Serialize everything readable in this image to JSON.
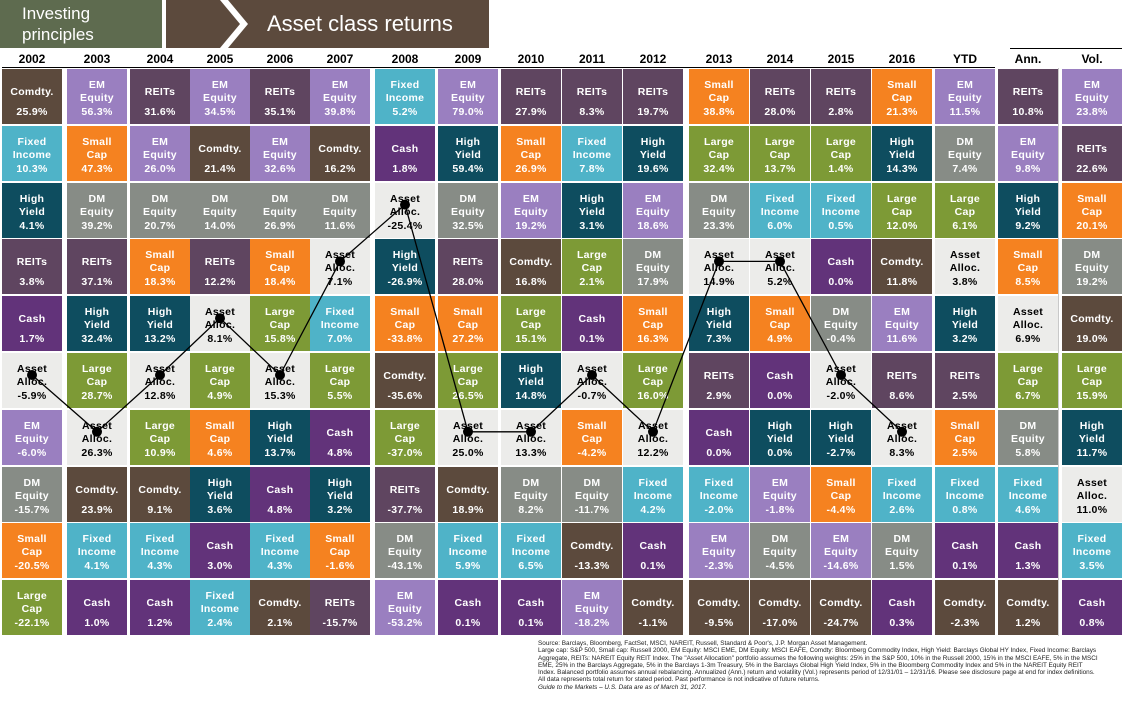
{
  "header": {
    "left_line1": "Investing",
    "left_line2": "principles",
    "title": "Asset class returns"
  },
  "colors": {
    "Comdty.": "#5c4a3d",
    "EM Equity": "#9a7fc0",
    "REITs": "#5f4560",
    "Fixed Income": "#4fb3c8",
    "Cash": "#62337a",
    "Small Cap": "#f58220",
    "High Yield": "#0e4d5f",
    "DM Equity": "#878c86",
    "Large Cap": "#7d9a36",
    "Asset Alloc.": "#ececea"
  },
  "chart_data": {
    "type": "table",
    "title": "Asset class returns",
    "columns": [
      "2002",
      "2003",
      "2004",
      "2005",
      "2006",
      "2007",
      "2008",
      "2009",
      "2010",
      "2011",
      "2012",
      "2013",
      "2014",
      "2015",
      "2016",
      "YTD",
      "Ann.",
      "Vol."
    ],
    "rows": [
      [
        [
          "Comdty.",
          "25.9%"
        ],
        [
          "EM Equity",
          "56.3%"
        ],
        [
          "REITs",
          "31.6%"
        ],
        [
          "EM Equity",
          "34.5%"
        ],
        [
          "REITs",
          "35.1%"
        ],
        [
          "EM Equity",
          "39.8%"
        ],
        [
          "Fixed Income",
          "5.2%"
        ],
        [
          "EM Equity",
          "79.0%"
        ],
        [
          "REITs",
          "27.9%"
        ],
        [
          "REITs",
          "8.3%"
        ],
        [
          "REITs",
          "19.7%"
        ],
        [
          "Small Cap",
          "38.8%"
        ],
        [
          "REITs",
          "28.0%"
        ],
        [
          "REITs",
          "2.8%"
        ],
        [
          "Small Cap",
          "21.3%"
        ],
        [
          "EM Equity",
          "11.5%"
        ],
        [
          "REITs",
          "10.8%"
        ],
        [
          "EM Equity",
          "23.8%"
        ]
      ],
      [
        [
          "Fixed Income",
          "10.3%"
        ],
        [
          "Small Cap",
          "47.3%"
        ],
        [
          "EM Equity",
          "26.0%"
        ],
        [
          "Comdty.",
          "21.4%"
        ],
        [
          "EM Equity",
          "32.6%"
        ],
        [
          "Comdty.",
          "16.2%"
        ],
        [
          "Cash",
          "1.8%"
        ],
        [
          "High Yield",
          "59.4%"
        ],
        [
          "Small Cap",
          "26.9%"
        ],
        [
          "Fixed Income",
          "7.8%"
        ],
        [
          "High Yield",
          "19.6%"
        ],
        [
          "Large Cap",
          "32.4%"
        ],
        [
          "Large Cap",
          "13.7%"
        ],
        [
          "Large Cap",
          "1.4%"
        ],
        [
          "High Yield",
          "14.3%"
        ],
        [
          "DM Equity",
          "7.4%"
        ],
        [
          "EM Equity",
          "9.8%"
        ],
        [
          "REITs",
          "22.6%"
        ]
      ],
      [
        [
          "High Yield",
          "4.1%"
        ],
        [
          "DM Equity",
          "39.2%"
        ],
        [
          "DM Equity",
          "20.7%"
        ],
        [
          "DM Equity",
          "14.0%"
        ],
        [
          "DM Equity",
          "26.9%"
        ],
        [
          "DM Equity",
          "11.6%"
        ],
        [
          "Asset Alloc.",
          "-25.4%"
        ],
        [
          "DM Equity",
          "32.5%"
        ],
        [
          "EM Equity",
          "19.2%"
        ],
        [
          "High Yield",
          "3.1%"
        ],
        [
          "EM Equity",
          "18.6%"
        ],
        [
          "DM Equity",
          "23.3%"
        ],
        [
          "Fixed Income",
          "6.0%"
        ],
        [
          "Fixed Income",
          "0.5%"
        ],
        [
          "Large Cap",
          "12.0%"
        ],
        [
          "Large Cap",
          "6.1%"
        ],
        [
          "High Yield",
          "9.2%"
        ],
        [
          "Small Cap",
          "20.1%"
        ]
      ],
      [
        [
          "REITs",
          "3.8%"
        ],
        [
          "REITs",
          "37.1%"
        ],
        [
          "Small Cap",
          "18.3%"
        ],
        [
          "REITs",
          "12.2%"
        ],
        [
          "Small Cap",
          "18.4%"
        ],
        [
          "Asset Alloc.",
          "7.1%"
        ],
        [
          "High Yield",
          "-26.9%"
        ],
        [
          "REITs",
          "28.0%"
        ],
        [
          "Comdty.",
          "16.8%"
        ],
        [
          "Large Cap",
          "2.1%"
        ],
        [
          "DM Equity",
          "17.9%"
        ],
        [
          "Asset Alloc.",
          "14.9%"
        ],
        [
          "Asset Alloc.",
          "5.2%"
        ],
        [
          "Cash",
          "0.0%"
        ],
        [
          "Comdty.",
          "11.8%"
        ],
        [
          "Asset Alloc.",
          "3.8%"
        ],
        [
          "Small Cap",
          "8.5%"
        ],
        [
          "DM Equity",
          "19.2%"
        ]
      ],
      [
        [
          "Cash",
          "1.7%"
        ],
        [
          "High Yield",
          "32.4%"
        ],
        [
          "High Yield",
          "13.2%"
        ],
        [
          "Asset Alloc.",
          "8.1%"
        ],
        [
          "Large Cap",
          "15.8%"
        ],
        [
          "Fixed Income",
          "7.0%"
        ],
        [
          "Small Cap",
          "-33.8%"
        ],
        [
          "Small Cap",
          "27.2%"
        ],
        [
          "Large Cap",
          "15.1%"
        ],
        [
          "Cash",
          "0.1%"
        ],
        [
          "Small Cap",
          "16.3%"
        ],
        [
          "High Yield",
          "7.3%"
        ],
        [
          "Small Cap",
          "4.9%"
        ],
        [
          "DM Equity",
          "-0.4%"
        ],
        [
          "EM Equity",
          "11.6%"
        ],
        [
          "High Yield",
          "3.2%"
        ],
        [
          "Asset Alloc.",
          "6.9%"
        ],
        [
          "Comdty.",
          "19.0%"
        ]
      ],
      [
        [
          "Asset Alloc.",
          "-5.9%"
        ],
        [
          "Large Cap",
          "28.7%"
        ],
        [
          "Asset Alloc.",
          "12.8%"
        ],
        [
          "Large Cap",
          "4.9%"
        ],
        [
          "Asset Alloc.",
          "15.3%"
        ],
        [
          "Large Cap",
          "5.5%"
        ],
        [
          "Comdty.",
          "-35.6%"
        ],
        [
          "Large Cap",
          "26.5%"
        ],
        [
          "High Yield",
          "14.8%"
        ],
        [
          "Asset Alloc.",
          "-0.7%"
        ],
        [
          "Large Cap",
          "16.0%"
        ],
        [
          "REITs",
          "2.9%"
        ],
        [
          "Cash",
          "0.0%"
        ],
        [
          "Asset Alloc.",
          "-2.0%"
        ],
        [
          "REITs",
          "8.6%"
        ],
        [
          "REITs",
          "2.5%"
        ],
        [
          "Large Cap",
          "6.7%"
        ],
        [
          "Large Cap",
          "15.9%"
        ]
      ],
      [
        [
          "EM Equity",
          "-6.0%"
        ],
        [
          "Asset Alloc.",
          "26.3%"
        ],
        [
          "Large Cap",
          "10.9%"
        ],
        [
          "Small Cap",
          "4.6%"
        ],
        [
          "High Yield",
          "13.7%"
        ],
        [
          "Cash",
          "4.8%"
        ],
        [
          "Large Cap",
          "-37.0%"
        ],
        [
          "Asset Alloc.",
          "25.0%"
        ],
        [
          "Asset Alloc.",
          "13.3%"
        ],
        [
          "Small Cap",
          "-4.2%"
        ],
        [
          "Asset Alloc.",
          "12.2%"
        ],
        [
          "Cash",
          "0.0%"
        ],
        [
          "High Yield",
          "0.0%"
        ],
        [
          "High Yield",
          "-2.7%"
        ],
        [
          "Asset Alloc.",
          "8.3%"
        ],
        [
          "Small Cap",
          "2.5%"
        ],
        [
          "DM Equity",
          "5.8%"
        ],
        [
          "High Yield",
          "11.7%"
        ]
      ],
      [
        [
          "DM Equity",
          "-15.7%"
        ],
        [
          "Comdty.",
          "23.9%"
        ],
        [
          "Comdty.",
          "9.1%"
        ],
        [
          "High Yield",
          "3.6%"
        ],
        [
          "Cash",
          "4.8%"
        ],
        [
          "High Yield",
          "3.2%"
        ],
        [
          "REITs",
          "-37.7%"
        ],
        [
          "Comdty.",
          "18.9%"
        ],
        [
          "DM Equity",
          "8.2%"
        ],
        [
          "DM Equity",
          "-11.7%"
        ],
        [
          "Fixed Income",
          "4.2%"
        ],
        [
          "Fixed Income",
          "-2.0%"
        ],
        [
          "EM Equity",
          "-1.8%"
        ],
        [
          "Small Cap",
          "-4.4%"
        ],
        [
          "Fixed Income",
          "2.6%"
        ],
        [
          "Fixed Income",
          "0.8%"
        ],
        [
          "Fixed Income",
          "4.6%"
        ],
        [
          "Asset Alloc.",
          "11.0%"
        ]
      ],
      [
        [
          "Small Cap",
          "-20.5%"
        ],
        [
          "Fixed Income",
          "4.1%"
        ],
        [
          "Fixed Income",
          "4.3%"
        ],
        [
          "Cash",
          "3.0%"
        ],
        [
          "Fixed Income",
          "4.3%"
        ],
        [
          "Small Cap",
          "-1.6%"
        ],
        [
          "DM Equity",
          "-43.1%"
        ],
        [
          "Fixed Income",
          "5.9%"
        ],
        [
          "Fixed Income",
          "6.5%"
        ],
        [
          "Comdty.",
          "-13.3%"
        ],
        [
          "Cash",
          "0.1%"
        ],
        [
          "EM Equity",
          "-2.3%"
        ],
        [
          "DM Equity",
          "-4.5%"
        ],
        [
          "EM Equity",
          "-14.6%"
        ],
        [
          "DM Equity",
          "1.5%"
        ],
        [
          "Cash",
          "0.1%"
        ],
        [
          "Cash",
          "1.3%"
        ],
        [
          "Fixed Income",
          "3.5%"
        ]
      ],
      [
        [
          "Large Cap",
          "-22.1%"
        ],
        [
          "Cash",
          "1.0%"
        ],
        [
          "Cash",
          "1.2%"
        ],
        [
          "Fixed Income",
          "2.4%"
        ],
        [
          "Comdty.",
          "2.1%"
        ],
        [
          "REITs",
          "-15.7%"
        ],
        [
          "EM Equity",
          "-53.2%"
        ],
        [
          "Cash",
          "0.1%"
        ],
        [
          "Cash",
          "0.1%"
        ],
        [
          "EM Equity",
          "-18.2%"
        ],
        [
          "Comdty.",
          "-1.1%"
        ],
        [
          "Comdty.",
          "-9.5%"
        ],
        [
          "Comdty.",
          "-17.0%"
        ],
        [
          "Comdty.",
          "-24.7%"
        ],
        [
          "Cash",
          "0.3%"
        ],
        [
          "Comdty.",
          "-2.3%"
        ],
        [
          "Comdty.",
          "1.2%"
        ],
        [
          "Cash",
          "0.8%"
        ]
      ]
    ],
    "series": [
      {
        "values": [
          "-5.9%",
          "26.3%",
          "12.8%",
          "8.1%",
          "15.3%",
          "7.1%",
          "-25.4%",
          "25.0%",
          "13.3%",
          "-0.7%",
          "12.2%",
          "14.9%",
          "5.2%",
          "-2.0%",
          "8.3%"
        ]
      }
    ]
  },
  "footnote": {
    "lines": [
      "Source: Barclays, Bloomberg, FactSet, MSCI, NAREIT, Russell, Standard & Poor's, J.P. Morgan Asset Management.",
      "Large cap: S&P 500, Small cap: Russell 2000, EM Equity: MSCI EME, DM Equity: MSCI EAFE, Comdty: Bloomberg Commodity Index, High Yield: Barclays Global HY Index, Fixed Income: Barclays Aggregate, REITs: NAREIT Equity REIT Index. The \"Asset Allocation\" portfolio assumes the following weights: 25% in the S&P 500, 10% in the Russell 2000, 15% in the MSCI EAFE, 5% in the MSCI EME, 25% in the Barclays Aggregate, 5% in the Barclays 1-3m Treasury, 5% in the Barclays Global High Yield Index, 5% in the Bloomberg Commodity Index and 5% in the NAREIT Equity REIT Index. Balanced portfolio assumes annual rebalancing. Annualized (Ann.) return and volatility (Vol.) represents period of 12/31/01 – 12/31/16. Please see disclosure page at end for index definitions. All data represents total return for stated period. Past performance is not indicative of future returns.",
      "Guide to the Markets – U.S. Data are as of March 31, 2017."
    ]
  }
}
